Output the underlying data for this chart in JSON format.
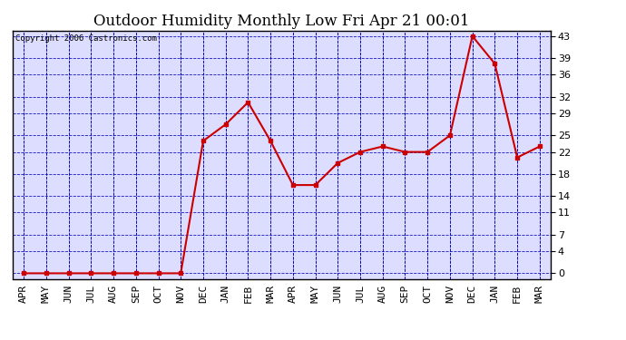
{
  "title": "Outdoor Humidity Monthly Low Fri Apr 21 00:01",
  "copyright": "Copyright 2006 Castronics.com",
  "categories": [
    "APR",
    "MAY",
    "JUN",
    "JUL",
    "AUG",
    "SEP",
    "OCT",
    "NOV",
    "DEC",
    "JAN",
    "FEB",
    "MAR",
    "APR",
    "MAY",
    "JUN",
    "JUL",
    "AUG",
    "SEP",
    "OCT",
    "NOV",
    "DEC",
    "JAN",
    "FEB",
    "MAR"
  ],
  "values": [
    0,
    0,
    0,
    0,
    0,
    0,
    0,
    0,
    24,
    27,
    31,
    24,
    16,
    16,
    20,
    22,
    23,
    22,
    22,
    25,
    43,
    38,
    21,
    23
  ],
  "yticks": [
    0,
    4,
    7,
    11,
    14,
    18,
    22,
    25,
    29,
    32,
    36,
    39,
    43
  ],
  "ymax": 44,
  "ymin": -1,
  "line_color": "#CC0000",
  "marker_color": "#CC0000",
  "background_color": "#FFFFFF",
  "plot_bg_color": "#DDDDFF",
  "grid_color": "#0000BB",
  "title_fontsize": 12,
  "copyright_fontsize": 6.5,
  "tick_fontsize": 8,
  "fig_width": 6.9,
  "fig_height": 3.75
}
